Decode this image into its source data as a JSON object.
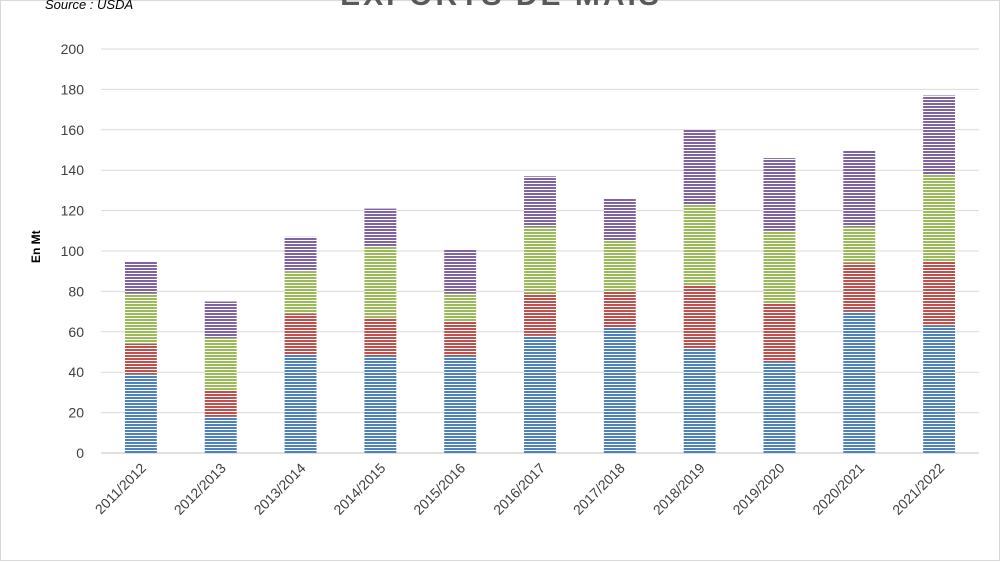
{
  "chart_data": {
    "type": "bar",
    "stacked": true,
    "title": "EXPORTS DE MAÏS",
    "source": "Source : USDA",
    "xlabel": "",
    "ylabel": "En Mt",
    "ylim": [
      0,
      200
    ],
    "yticks": [
      0,
      20,
      40,
      60,
      80,
      100,
      120,
      140,
      160,
      180,
      200
    ],
    "grid": true,
    "categories": [
      "2011/2012",
      "2012/2013",
      "2013/2014",
      "2014/2015",
      "2015/2016",
      "2016/2017",
      "2017/2018",
      "2018/2019",
      "2019/2020",
      "2020/2021",
      "2021/2022"
    ],
    "series": [
      {
        "color": "#4f81bd",
        "values": [
          39,
          18,
          49,
          48,
          48,
          58,
          62,
          52,
          45,
          70,
          63
        ]
      },
      {
        "color": "#c0504d",
        "values": [
          15,
          13,
          20,
          19,
          17,
          21,
          18,
          31,
          29,
          24,
          32
        ]
      },
      {
        "color": "#9bbb59",
        "values": [
          25,
          26,
          21,
          35,
          14,
          33,
          25,
          40,
          36,
          18,
          43
        ]
      },
      {
        "color": "#8064a2",
        "values": [
          16,
          18,
          17,
          19,
          22,
          25,
          21,
          37,
          36,
          38,
          39
        ]
      }
    ]
  }
}
